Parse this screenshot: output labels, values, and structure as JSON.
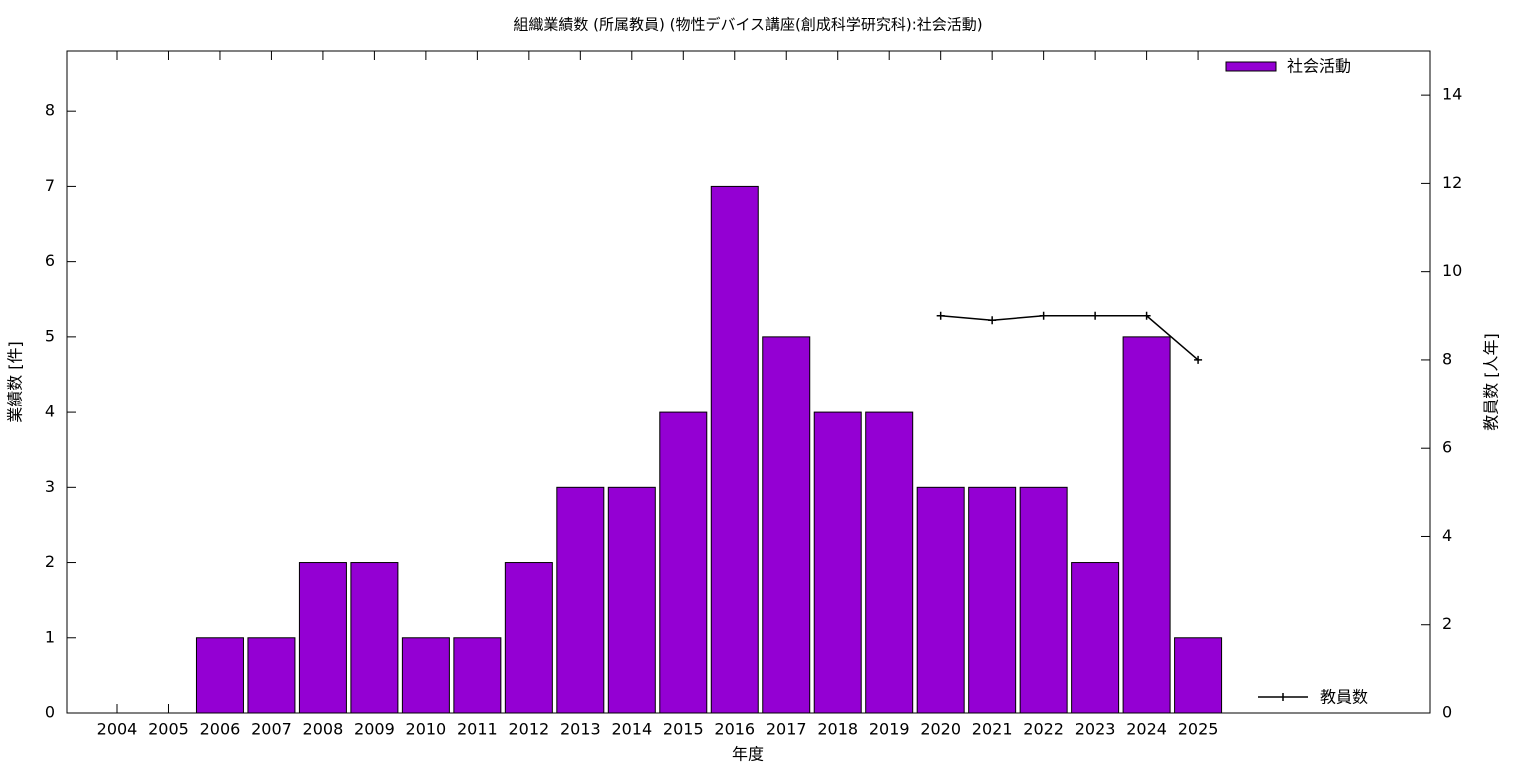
{
  "chart_data": {
    "type": "bar",
    "title": "組織業績数 (所属教員) (物性デバイス講座(創成科学研究科):社会活動)",
    "x_label": "年度",
    "y_label": "業績数 [件]",
    "y2_label": "教員数 [人年]",
    "categories": [
      "2004",
      "2005",
      "2006",
      "2007",
      "2008",
      "2009",
      "2010",
      "2011",
      "2012",
      "2013",
      "2014",
      "2015",
      "2016",
      "2017",
      "2018",
      "2019",
      "2020",
      "2021",
      "2022",
      "2023",
      "2024",
      "2025"
    ],
    "series": [
      {
        "name": "社会活動",
        "type": "bar",
        "color": "#9400d3",
        "values": [
          0,
          0,
          1,
          1,
          2,
          2,
          1,
          1,
          2,
          3,
          3,
          4,
          7,
          5,
          4,
          4,
          3,
          3,
          3,
          2,
          5,
          1
        ]
      },
      {
        "name": "教員数",
        "type": "line",
        "axis": "y2",
        "color": "#000000",
        "values": [
          null,
          null,
          null,
          null,
          null,
          null,
          null,
          null,
          null,
          null,
          null,
          null,
          null,
          null,
          null,
          null,
          9,
          8.9,
          9,
          9,
          9,
          8
        ]
      }
    ],
    "ylim": [
      0,
      8.8
    ],
    "yticks": [
      0,
      1,
      2,
      3,
      4,
      5,
      6,
      7,
      8
    ],
    "y2lim": [
      0,
      15
    ],
    "y2ticks": [
      0,
      2,
      4,
      6,
      8,
      10,
      12,
      14
    ]
  }
}
